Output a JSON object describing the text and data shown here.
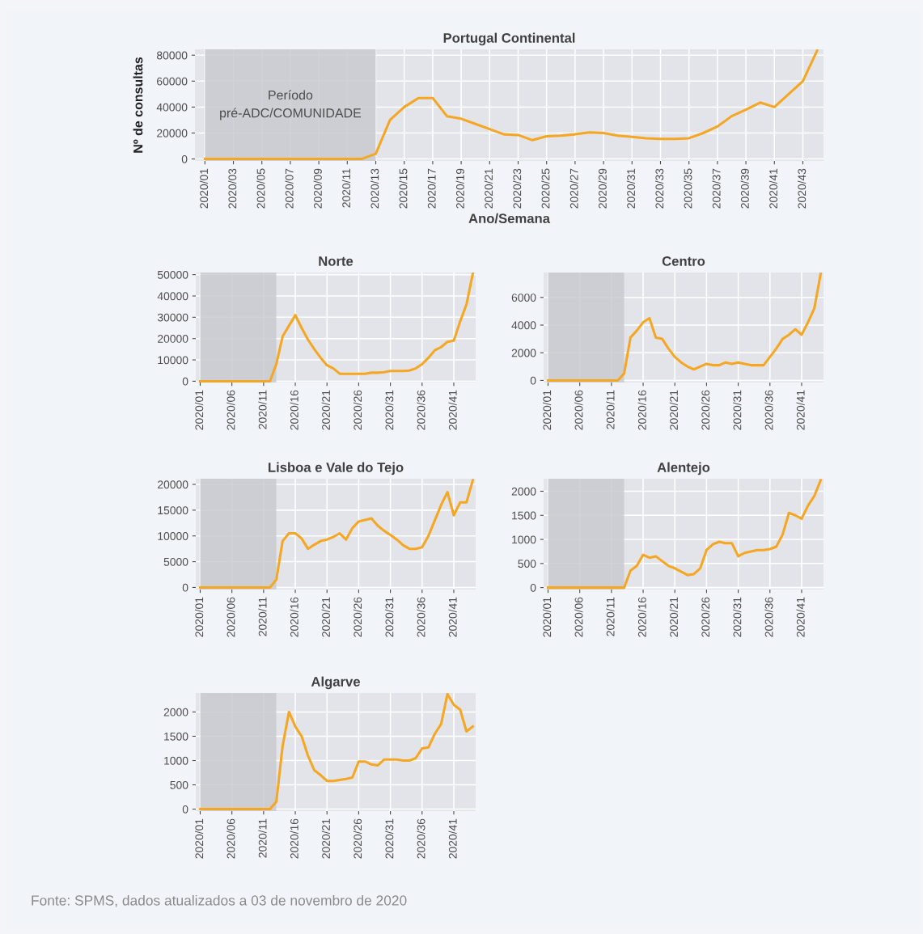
{
  "chart_data": [
    {
      "type": "line",
      "title": "Portugal Continental",
      "xlabel": "Ano/Semana",
      "ylabel": "Nº de consultas",
      "categories": [
        "2020/01",
        null,
        "2020/03",
        null,
        "2020/05",
        null,
        "2020/07",
        null,
        "2020/09",
        null,
        "2020/11",
        null,
        "2020/13",
        null,
        "2020/15",
        null,
        "2020/17",
        null,
        "2020/19",
        null,
        "2020/21",
        null,
        "2020/23",
        null,
        "2020/25",
        null,
        "2020/27",
        null,
        "2020/29",
        null,
        "2020/31",
        null,
        "2020/33",
        null,
        "2020/35",
        null,
        "2020/37",
        null,
        "2020/39",
        null,
        "2020/41",
        null,
        "2020/43",
        null
      ],
      "series": [
        {
          "color": "#f5a623",
          "values": [
            0,
            0,
            0,
            0,
            0,
            0,
            0,
            0,
            0,
            0,
            0,
            0,
            4000,
            30000,
            40000,
            47000,
            47000,
            33000,
            31000,
            27000,
            23000,
            19000,
            18500,
            14500,
            17500,
            18000,
            19000,
            20500,
            20000,
            18000,
            17000,
            16000,
            15500,
            15500,
            16000,
            20000,
            25000,
            33000,
            38000,
            43500,
            40000,
            50000,
            60000,
            83500
          ]
        }
      ],
      "ylim": [
        -1500,
        84500
      ],
      "yticks": [
        0,
        20000,
        40000,
        60000,
        80000
      ],
      "grid": true,
      "bands": [
        {
          "axis": "x",
          "from": "2020/01",
          "to": "2020/13",
          "label": "Período\npré-ADC/COMUNIDADE",
          "color": "#c9cacf"
        }
      ]
    },
    {
      "type": "line",
      "title": "Norte",
      "categories": [
        "2020/01",
        null,
        null,
        null,
        null,
        "2020/06",
        null,
        null,
        null,
        null,
        "2020/11",
        null,
        null,
        null,
        null,
        "2020/16",
        null,
        null,
        null,
        null,
        "2020/21",
        null,
        null,
        null,
        null,
        "2020/26",
        null,
        null,
        null,
        null,
        "2020/31",
        null,
        null,
        null,
        null,
        "2020/36",
        null,
        null,
        null,
        null,
        "2020/41",
        null,
        null,
        null
      ],
      "series": [
        {
          "color": "#f5a623",
          "values": [
            0,
            0,
            0,
            0,
            0,
            0,
            0,
            0,
            0,
            0,
            0,
            0,
            8000,
            21000,
            26000,
            31000,
            25000,
            19500,
            15000,
            11000,
            7500,
            6000,
            3500,
            3500,
            3500,
            3500,
            3500,
            4000,
            4000,
            4200,
            4800,
            4800,
            4800,
            5000,
            6000,
            8000,
            11000,
            14500,
            16000,
            18500,
            19000,
            28000,
            36000,
            50500
          ]
        }
      ],
      "ylim": [
        -600,
        51000
      ],
      "yticks": [
        0,
        10000,
        20000,
        30000,
        40000,
        50000
      ],
      "grid": true
    },
    {
      "type": "line",
      "title": "Centro",
      "categories": [
        "2020/01",
        null,
        null,
        null,
        null,
        "2020/06",
        null,
        null,
        null,
        null,
        "2020/11",
        null,
        null,
        null,
        null,
        "2020/16",
        null,
        null,
        null,
        null,
        "2020/21",
        null,
        null,
        null,
        null,
        "2020/26",
        null,
        null,
        null,
        null,
        "2020/31",
        null,
        null,
        null,
        null,
        "2020/36",
        null,
        null,
        null,
        null,
        "2020/41",
        null,
        null,
        null
      ],
      "series": [
        {
          "color": "#f5a623",
          "values": [
            0,
            0,
            0,
            0,
            0,
            0,
            0,
            0,
            0,
            0,
            0,
            0,
            500,
            3100,
            3600,
            4200,
            4500,
            3100,
            3000,
            2300,
            1700,
            1300,
            1000,
            800,
            1000,
            1200,
            1100,
            1100,
            1300,
            1200,
            1300,
            1200,
            1100,
            1100,
            1100,
            1700,
            2300,
            3000,
            3300,
            3700,
            3300,
            4200,
            5200,
            7700
          ]
        }
      ],
      "ylim": [
        -150,
        7800
      ],
      "yticks": [
        0,
        2000,
        4000,
        6000
      ],
      "grid": true
    },
    {
      "type": "line",
      "title": "Lisboa e Vale do Tejo",
      "categories": [
        "2020/01",
        null,
        null,
        null,
        null,
        "2020/06",
        null,
        null,
        null,
        null,
        "2020/11",
        null,
        null,
        null,
        null,
        "2020/16",
        null,
        null,
        null,
        null,
        "2020/21",
        null,
        null,
        null,
        null,
        "2020/26",
        null,
        null,
        null,
        null,
        "2020/31",
        null,
        null,
        null,
        null,
        "2020/36",
        null,
        null,
        null,
        null,
        "2020/41",
        null,
        null,
        null
      ],
      "series": [
        {
          "color": "#f5a623",
          "values": [
            0,
            0,
            0,
            0,
            0,
            0,
            0,
            0,
            0,
            0,
            0,
            0,
            1500,
            9000,
            10500,
            10500,
            9500,
            7500,
            8300,
            9000,
            9300,
            9800,
            10500,
            9300,
            11500,
            12800,
            13100,
            13400,
            12000,
            11000,
            10200,
            9300,
            8200,
            7500,
            7500,
            7800,
            10000,
            13000,
            16000,
            18500,
            14000,
            16500,
            16500,
            20800
          ]
        }
      ],
      "ylim": [
        -400,
        21100
      ],
      "yticks": [
        0,
        5000,
        10000,
        15000,
        20000
      ],
      "grid": true
    },
    {
      "type": "line",
      "title": "Alentejo",
      "categories": [
        "2020/01",
        null,
        null,
        null,
        null,
        "2020/06",
        null,
        null,
        null,
        null,
        "2020/11",
        null,
        null,
        null,
        null,
        "2020/16",
        null,
        null,
        null,
        null,
        "2020/21",
        null,
        null,
        null,
        null,
        "2020/26",
        null,
        null,
        null,
        null,
        "2020/31",
        null,
        null,
        null,
        null,
        "2020/36",
        null,
        null,
        null,
        null,
        "2020/41",
        null,
        null,
        null
      ],
      "series": [
        {
          "color": "#f5a623",
          "values": [
            0,
            0,
            0,
            0,
            0,
            0,
            0,
            0,
            0,
            0,
            0,
            0,
            0,
            350,
            450,
            680,
            620,
            650,
            550,
            450,
            400,
            330,
            260,
            280,
            400,
            780,
            900,
            950,
            920,
            920,
            650,
            720,
            750,
            780,
            780,
            800,
            850,
            1100,
            1550,
            1500,
            1430,
            1700,
            1900,
            2230
          ]
        }
      ],
      "ylim": [
        -40,
        2260
      ],
      "yticks": [
        0,
        500,
        1000,
        1500,
        2000
      ],
      "grid": true
    },
    {
      "type": "line",
      "title": "Algarve",
      "categories": [
        "2020/01",
        null,
        null,
        null,
        null,
        "2020/06",
        null,
        null,
        null,
        null,
        "2020/11",
        null,
        null,
        null,
        null,
        "2020/16",
        null,
        null,
        null,
        null,
        "2020/21",
        null,
        null,
        null,
        null,
        "2020/26",
        null,
        null,
        null,
        null,
        "2020/31",
        null,
        null,
        null,
        null,
        "2020/36",
        null,
        null,
        null,
        null,
        "2020/41",
        null,
        null,
        null
      ],
      "series": [
        {
          "color": "#f5a623",
          "values": [
            0,
            0,
            0,
            0,
            0,
            0,
            0,
            0,
            0,
            0,
            0,
            0,
            150,
            1300,
            2000,
            1700,
            1500,
            1100,
            800,
            700,
            580,
            580,
            600,
            620,
            650,
            980,
            980,
            920,
            900,
            1020,
            1020,
            1020,
            1000,
            1000,
            1050,
            1250,
            1270,
            1550,
            1750,
            2370,
            2150,
            2050,
            1600,
            1700
          ]
        }
      ],
      "ylim": [
        -40,
        2390
      ],
      "yticks": [
        0,
        500,
        1000,
        1500,
        2000
      ],
      "grid": true,
      "annotations": [
        "Fonte: SPMS, dados atualizados a 03 de novembro de 2020"
      ]
    }
  ]
}
